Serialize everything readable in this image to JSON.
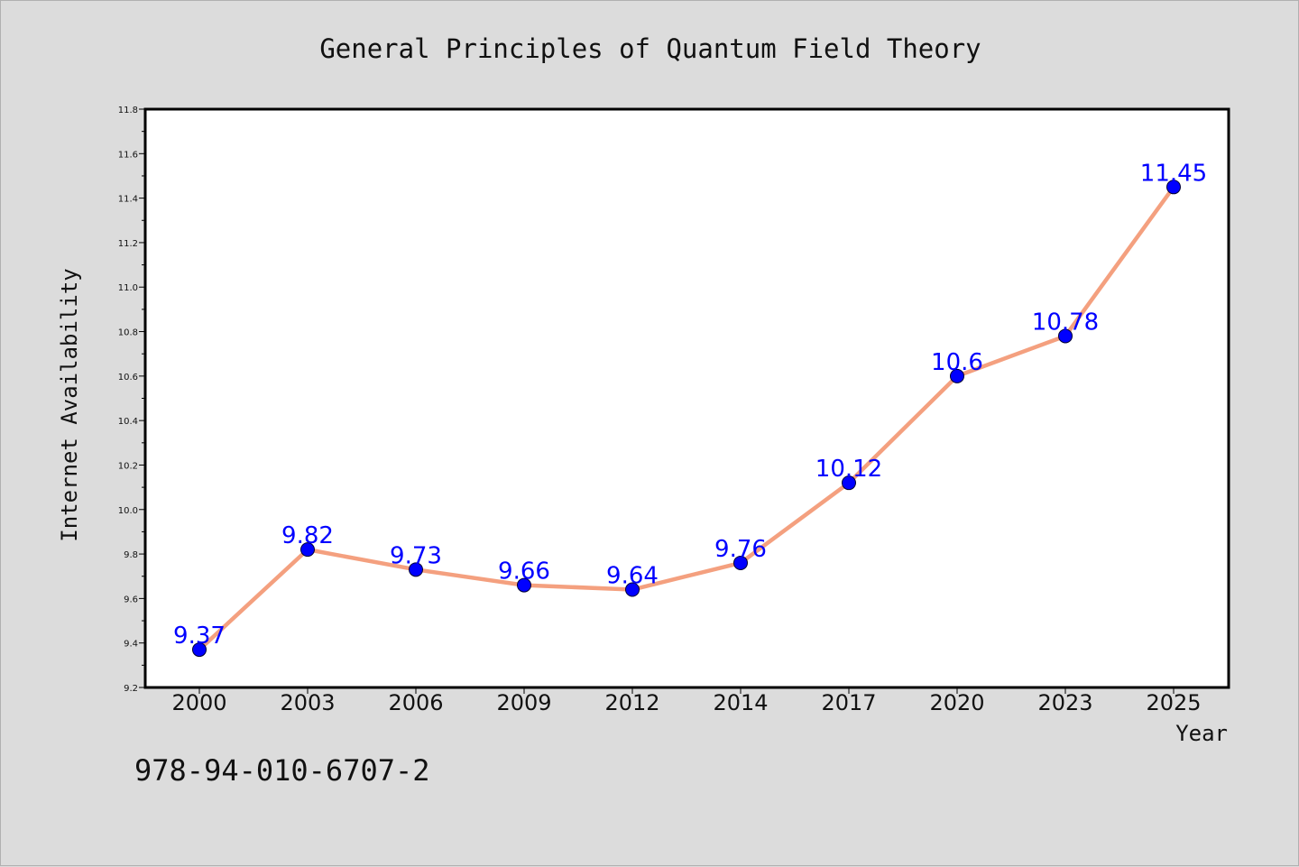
{
  "chart_data": {
    "type": "line",
    "title": "General Principles of Quantum Field Theory",
    "xlabel": "Year",
    "ylabel": "Internet Availability",
    "categories": [
      "2000",
      "2003",
      "2006",
      "2009",
      "2012",
      "2014",
      "2017",
      "2020",
      "2023",
      "2025"
    ],
    "series": [
      {
        "values": [
          9.37,
          9.82,
          9.73,
          9.66,
          9.64,
          9.76,
          10.12,
          10.6,
          10.78,
          11.45
        ],
        "labels": [
          "9.37",
          "9.82",
          "9.73",
          "9.66",
          "9.64",
          "9.76",
          "10.12",
          "10.6",
          "10.78",
          "11.45"
        ],
        "line_color": "#f4a07f",
        "marker_color": "#0000ff"
      }
    ],
    "ylim": [
      9.2,
      11.8
    ],
    "yticks": [
      "9.2",
      "9.4",
      "9.6",
      "9.8",
      "10.0",
      "10.2",
      "10.4",
      "10.6",
      "10.8",
      "11.0",
      "11.2",
      "11.4",
      "11.6",
      "11.8"
    ],
    "grid": false,
    "legend": "none"
  },
  "annotation": {
    "isbn": "978-94-010-6707-2"
  },
  "colors": {
    "background": "#dcdcdc",
    "plot_background": "#ffffff",
    "label_color": "#0000ff"
  }
}
